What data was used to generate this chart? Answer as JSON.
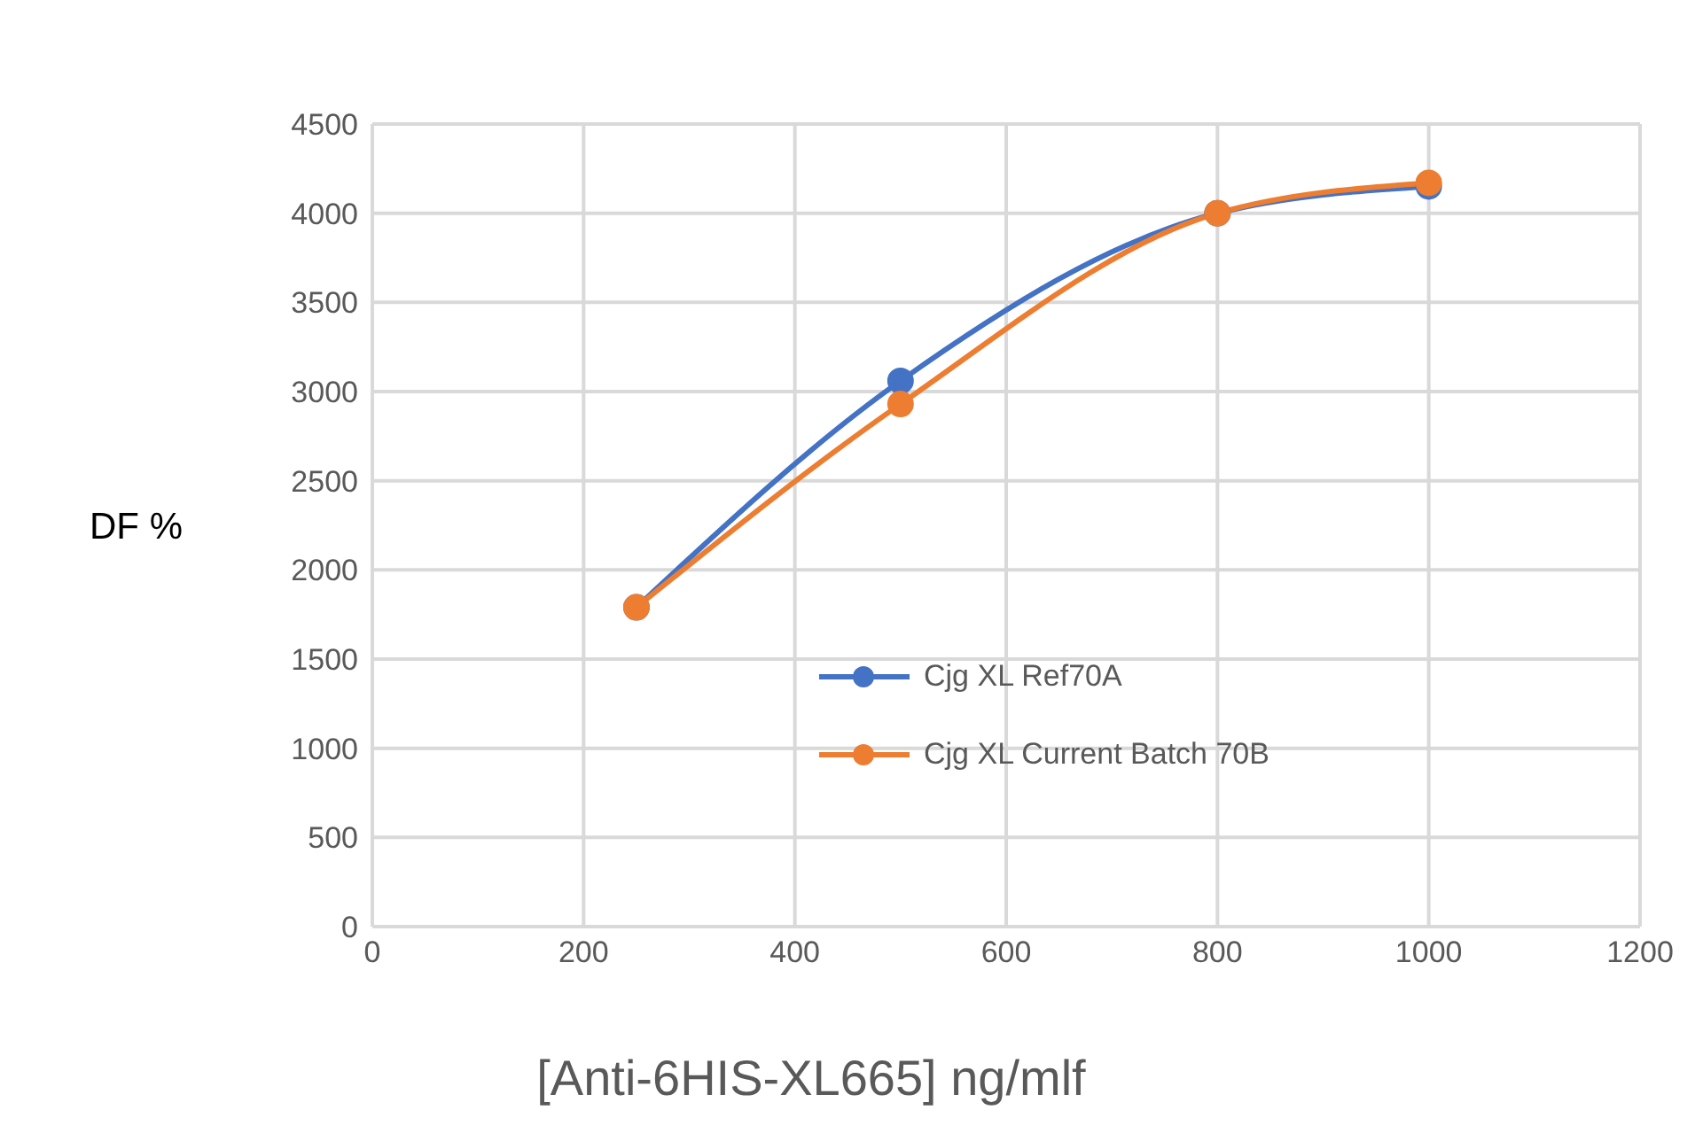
{
  "chart_data": {
    "type": "line",
    "xlabel": "[Anti-6HIS-XL665]  ng/mlf",
    "ylabel": "DF %",
    "x": [
      250,
      500,
      800,
      1000
    ],
    "series": [
      {
        "name": "Cjg XL Ref70A",
        "color": "#4472c4",
        "values": [
          1790,
          3060,
          4000,
          4150
        ]
      },
      {
        "name": "Cjg XL Current Batch 70B",
        "color": "#ed7d31",
        "values": [
          1790,
          2930,
          4000,
          4170
        ]
      }
    ],
    "xlim": [
      0,
      1200
    ],
    "xticks": [
      0,
      200,
      400,
      600,
      800,
      1000,
      1200
    ],
    "ylim": [
      0,
      4500
    ],
    "yticks": [
      0,
      500,
      1000,
      1500,
      2000,
      2500,
      3000,
      3500,
      4000,
      4500
    ],
    "grid": true,
    "legend": "center",
    "marker": "circle",
    "line_style": "solid"
  }
}
